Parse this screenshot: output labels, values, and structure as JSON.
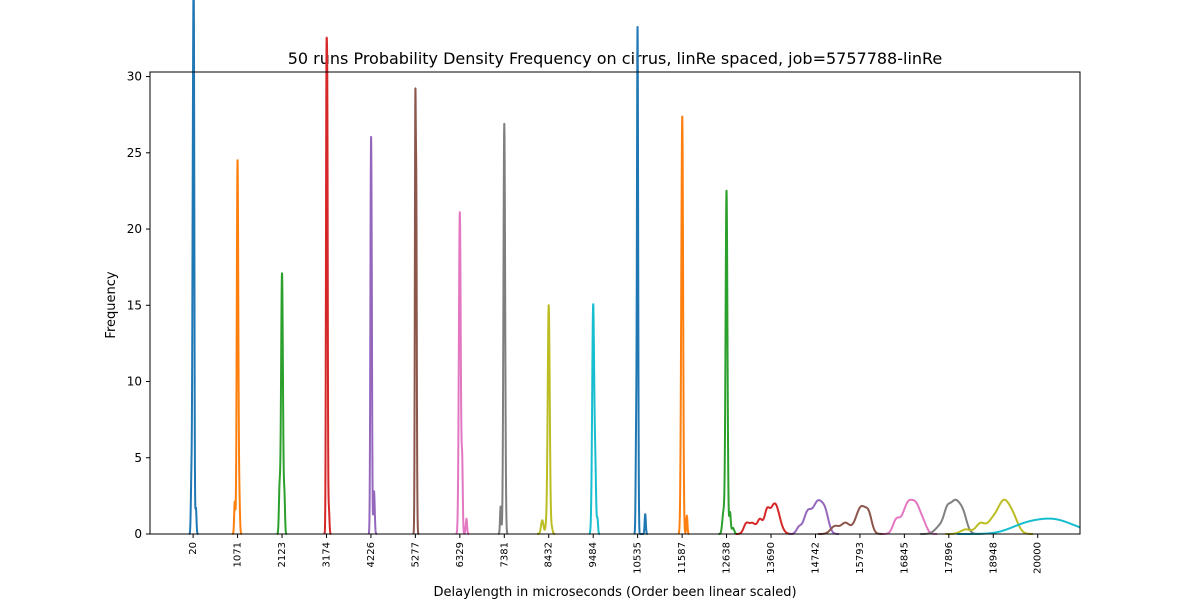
{
  "chart_data": {
    "type": "line",
    "title": "50 runs Probability Density Frequency on cirrus, linRe spaced, job=5757788-linRe",
    "xlabel": "Delaylength in microseconds (Order been linear scaled)",
    "ylabel": "Frequency",
    "x_tick_labels": [
      "20",
      "1071",
      "2123",
      "3174",
      "4226",
      "5277",
      "6329",
      "7381",
      "8432",
      "9484",
      "10535",
      "11587",
      "12638",
      "13690",
      "14742",
      "15793",
      "16845",
      "17896",
      "18948",
      "20000"
    ],
    "yticks": [
      0,
      5,
      10,
      15,
      20,
      25,
      30
    ],
    "ylim": [
      0,
      30.3
    ],
    "xlim": [
      -1000,
      21000
    ],
    "grid": false,
    "legend": "none",
    "series": [
      {
        "color": "#1f77b4",
        "peaks": [
          [
            20,
            26.3,
            16
          ],
          [
            -20,
            3.4,
            14
          ],
          [
            40,
            20.5,
            12
          ],
          [
            85,
            1.7,
            14
          ]
        ]
      },
      {
        "color": "#ff7f0e",
        "peaks": [
          [
            1071,
            24.5,
            18
          ],
          [
            1005,
            2.1,
            14
          ],
          [
            1115,
            2.0,
            14
          ]
        ]
      },
      {
        "color": "#2ca02c",
        "peaks": [
          [
            2123,
            17.1,
            22
          ],
          [
            2065,
            2.9,
            16
          ],
          [
            2180,
            2.3,
            14
          ]
        ]
      },
      {
        "color": "#d62728",
        "peaks": [
          [
            3174,
            28.7,
            12
          ],
          [
            3195,
            18.4,
            10
          ],
          [
            3200,
            5.0,
            12
          ],
          [
            3230,
            1.7,
            14
          ]
        ]
      },
      {
        "color": "#9467bd",
        "peaks": [
          [
            4226,
            22.6,
            14
          ],
          [
            4245,
            9.5,
            12
          ],
          [
            4300,
            2.8,
            16
          ]
        ]
      },
      {
        "color": "#8c564b",
        "peaks": [
          [
            5277,
            27.7,
            12
          ],
          [
            5300,
            16.0,
            10
          ],
          [
            5310,
            4.0,
            12
          ]
        ]
      },
      {
        "color": "#e377c2",
        "peaks": [
          [
            6329,
            21.1,
            22
          ],
          [
            6385,
            4.5,
            14
          ],
          [
            6485,
            1.0,
            16
          ]
        ]
      },
      {
        "color": "#7f7f7f",
        "peaks": [
          [
            7381,
            26.9,
            20
          ],
          [
            7295,
            1.8,
            14
          ]
        ]
      },
      {
        "color": "#bcbd22",
        "peaks": [
          [
            8432,
            15.0,
            24
          ],
          [
            8280,
            0.9,
            30
          ],
          [
            8370,
            0.5,
            20
          ],
          [
            8505,
            0.4,
            20
          ]
        ]
      },
      {
        "color": "#17becf",
        "peaks": [
          [
            9484,
            15.0,
            24
          ],
          [
            9535,
            3.8,
            18
          ],
          [
            9585,
            1.0,
            14
          ]
        ]
      },
      {
        "color": "#1f77b4",
        "peaks": [
          [
            10535,
            29.0,
            14
          ],
          [
            10500,
            6.1,
            12
          ],
          [
            10525,
            5.5,
            12
          ],
          [
            10715,
            1.3,
            14
          ]
        ]
      },
      {
        "color": "#ff7f0e",
        "peaks": [
          [
            11587,
            23.7,
            22
          ],
          [
            11600,
            5.0,
            14
          ],
          [
            11700,
            1.2,
            14
          ]
        ]
      },
      {
        "color": "#2ca02c",
        "peaks": [
          [
            12638,
            22.4,
            22
          ],
          [
            12570,
            1.5,
            30
          ],
          [
            12720,
            1.4,
            18
          ],
          [
            12790,
            0.4,
            30
          ]
        ]
      },
      {
        "color": "#d62728",
        "peaks": [
          [
            13780,
            2.0,
            110
          ],
          [
            13100,
            0.6,
            60
          ],
          [
            13250,
            0.7,
            80
          ],
          [
            13430,
            0.9,
            60
          ],
          [
            13590,
            1.2,
            60
          ]
        ]
      },
      {
        "color": "#9467bd",
        "peaks": [
          [
            14800,
            2.1,
            120
          ],
          [
            14550,
            1.3,
            90
          ],
          [
            14350,
            0.4,
            60
          ],
          [
            14980,
            1.0,
            80
          ]
        ]
      },
      {
        "color": "#8c564b",
        "peaks": [
          [
            15830,
            1.8,
            130
          ],
          [
            15200,
            0.5,
            100
          ],
          [
            15450,
            0.7,
            100
          ],
          [
            16010,
            0.8,
            70
          ]
        ]
      },
      {
        "color": "#e377c2",
        "peaks": [
          [
            16950,
            2.1,
            140
          ],
          [
            16650,
            0.8,
            80
          ],
          [
            17150,
            1.1,
            90
          ],
          [
            17300,
            0.6,
            80
          ]
        ]
      },
      {
        "color": "#7f7f7f",
        "peaks": [
          [
            18050,
            2.2,
            150
          ],
          [
            17700,
            0.5,
            120
          ],
          [
            17850,
            0.7,
            70
          ],
          [
            18250,
            0.6,
            80
          ]
        ]
      },
      {
        "color": "#bcbd22",
        "peaks": [
          [
            19200,
            2.2,
            170
          ],
          [
            18300,
            0.3,
            120
          ],
          [
            18650,
            0.7,
            110
          ],
          [
            18900,
            0.5,
            100
          ],
          [
            19450,
            0.5,
            110
          ]
        ]
      },
      {
        "color": "#17becf",
        "peaks": [
          [
            20290,
            1.0,
            550
          ],
          [
            19380,
            0.1,
            250
          ],
          [
            19700,
            0.15,
            250
          ]
        ]
      }
    ]
  }
}
